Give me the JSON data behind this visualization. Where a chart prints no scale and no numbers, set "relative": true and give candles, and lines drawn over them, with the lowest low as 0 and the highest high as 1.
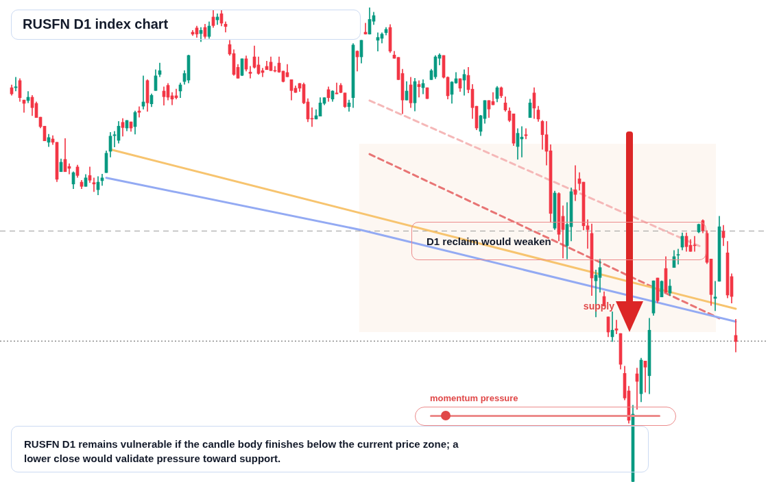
{
  "chart_data": {
    "type": "candlestick",
    "title": "RUSFN D1 index chart",
    "relative": true,
    "categories": [
      null,
      null,
      null,
      null,
      null,
      null,
      null,
      null,
      null,
      null,
      null,
      null,
      null,
      null,
      null,
      null,
      null,
      null,
      null,
      null,
      null,
      null,
      null,
      null,
      null,
      null,
      null,
      null,
      null,
      null,
      null,
      null,
      null,
      null,
      null,
      null,
      null,
      null,
      null,
      null,
      null,
      null,
      null,
      null,
      null,
      null,
      null,
      null,
      null,
      null,
      null,
      null,
      null,
      null,
      null,
      null,
      null,
      null,
      null,
      null,
      null,
      null,
      null,
      null,
      null,
      null,
      null,
      null,
      null,
      null,
      null,
      null,
      null,
      null,
      null,
      null,
      null,
      null,
      null,
      null,
      null,
      null,
      null,
      null,
      null,
      null,
      null,
      null,
      null,
      null,
      null,
      null,
      null,
      null,
      null,
      null,
      null,
      null,
      null,
      null,
      null,
      null,
      null,
      null,
      null,
      null,
      null,
      null,
      null,
      null,
      null,
      null,
      null,
      null,
      null,
      null,
      null,
      null,
      null,
      null,
      null,
      null,
      null,
      null,
      null,
      null,
      null,
      null,
      null,
      null,
      null,
      null,
      null,
      null,
      null,
      null,
      null,
      null,
      null,
      null,
      null,
      null,
      null,
      null,
      null,
      null,
      null,
      null,
      null,
      null,
      null,
      null,
      null,
      null,
      null,
      null,
      null,
      null,
      null,
      null,
      null,
      null,
      null,
      null,
      null,
      null,
      null,
      null,
      null,
      null,
      null,
      null,
      null,
      null,
      null,
      null,
      null
    ],
    "colors": [
      "#f23645",
      "#089981",
      "#f23645",
      "#f23645",
      "#089981",
      "#f23645",
      "#f23645",
      "#f23645",
      "#f23645",
      "#089981",
      "#f23645",
      "#f23645",
      "#089981",
      "#f23645",
      "#f23645",
      "#089981",
      "#f23645",
      "#f23645",
      "#089981",
      "#f23645",
      "#f23645",
      "#089981",
      "#089981",
      "#089981",
      "#089981",
      "#089981",
      "#089981",
      "#f23645",
      "#089981",
      "#f23645",
      "#089981",
      "#f23645",
      "#089981",
      "#f23645",
      "#089981",
      "#089981",
      "#089981",
      "#f23645",
      "#f23645",
      "#f23645",
      "#f23645",
      "#089981",
      "#089981",
      "#089981",
      "#f23645",
      "#f23645",
      "#089981",
      "#f23645",
      "#089981",
      "#f23645",
      "#089981",
      "#f23645",
      "#f23645",
      "#f23645",
      "#f23645",
      "#f23645",
      "#089981",
      "#f23645",
      "#f23645",
      "#f23645",
      "#f23645",
      "#f23645",
      "#f23645",
      "#f23645",
      "#f23645",
      "#f23645",
      "#f23645",
      "#f23645",
      "#f23645",
      "#f23645",
      "#f23645",
      "#f23645",
      "#f23645",
      "#f23645",
      "#089981",
      "#089981",
      "#089981",
      "#f23645",
      "#089981",
      "#f23645",
      "#f23645",
      "#f23645",
      "#089981",
      "#089981",
      "#f23645",
      "#089981",
      "#f23645",
      "#089981",
      "#089981",
      "#089981",
      "#089981",
      "#089981",
      "#f23645",
      "#f23645",
      "#f23645",
      "#f23645",
      "#089981",
      "#f23645",
      "#089981",
      "#f23645",
      "#089981",
      "#f23645",
      "#089981",
      "#089981",
      "#089981",
      "#f23645",
      "#f23645",
      "#089981",
      "#089981",
      "#f23645",
      "#089981",
      "#f23645",
      "#f23645",
      "#f23645",
      "#089981",
      "#089981",
      "#f23645",
      "#f23645",
      "#089981",
      "#f23645",
      "#f23645",
      "#f23645",
      "#f23645",
      "#089981",
      "#089981",
      "#f23645",
      "#089981",
      "#f23645",
      "#f23645",
      "#f23645",
      "#f23645",
      "#f23645",
      "#089981",
      "#f23645",
      "#f23645",
      "#089981",
      "#089981",
      "#f23645",
      "#f23645",
      "#f23645",
      "#f23645",
      "#f23645",
      "#089981",
      "#089981",
      "#f23645",
      "#f23645",
      "#089981",
      "#f23645",
      "#f23645",
      "#f23645",
      "#f23645",
      "#089981",
      "#f23645",
      "#089981",
      "#f23645",
      "#089981",
      "#089981",
      "#f23645",
      "#089981",
      "#f23645",
      "#089981",
      "#089981",
      "#089981",
      "#089981",
      "#f23645",
      "#f23645",
      "#f23645",
      "#089981",
      "#f23645",
      "#f23645",
      "#f23645",
      "#089981",
      "#089981",
      "#f23645",
      "#f23645",
      "#f23645",
      "#f23645"
    ],
    "ohlc": [
      [
        0.831,
        0.837,
        0.815,
        0.818
      ],
      [
        0.831,
        0.853,
        0.824,
        0.833
      ],
      [
        0.846,
        0.85,
        0.802,
        0.81
      ],
      [
        0.805,
        0.805,
        0.779,
        0.798
      ],
      [
        0.804,
        0.823,
        0.799,
        0.811
      ],
      [
        0.811,
        0.815,
        0.772,
        0.789
      ],
      [
        0.798,
        0.801,
        0.768,
        0.768
      ],
      [
        0.769,
        0.769,
        0.746,
        0.749
      ],
      [
        0.75,
        0.75,
        0.719,
        0.719
      ],
      [
        0.716,
        0.733,
        0.707,
        0.726
      ],
      [
        0.723,
        0.73,
        0.711,
        0.716
      ],
      [
        0.716,
        0.716,
        0.633,
        0.638
      ],
      [
        0.654,
        0.681,
        0.654,
        0.674
      ],
      [
        0.68,
        0.724,
        0.654,
        0.654
      ],
      [
        0.665,
        0.671,
        0.649,
        0.661
      ],
      [
        0.628,
        0.654,
        0.618,
        0.652
      ],
      [
        0.664,
        0.668,
        0.642,
        0.646
      ],
      [
        0.632,
        0.636,
        0.618,
        0.623
      ],
      [
        0.623,
        0.648,
        0.623,
        0.641
      ],
      [
        0.646,
        0.664,
        0.631,
        0.636
      ],
      [
        0.631,
        0.641,
        0.612,
        0.628
      ],
      [
        0.616,
        0.644,
        0.605,
        0.632
      ],
      [
        0.635,
        0.649,
        0.625,
        0.641
      ],
      [
        0.652,
        0.698,
        0.652,
        0.693
      ],
      [
        0.697,
        0.737,
        0.685,
        0.729
      ],
      [
        0.73,
        0.739,
        0.706,
        0.732
      ],
      [
        0.72,
        0.76,
        0.714,
        0.75
      ],
      [
        0.758,
        0.766,
        0.729,
        0.747
      ],
      [
        0.746,
        0.762,
        0.74,
        0.762
      ],
      [
        0.759,
        0.759,
        0.739,
        0.746
      ],
      [
        0.749,
        0.782,
        0.733,
        0.779
      ],
      [
        0.782,
        0.791,
        0.769,
        0.779
      ],
      [
        0.792,
        0.856,
        0.786,
        0.801
      ],
      [
        0.846,
        0.848,
        0.781,
        0.799
      ],
      [
        0.797,
        0.818,
        0.791,
        0.815
      ],
      [
        0.825,
        0.869,
        0.825,
        0.856
      ],
      [
        0.859,
        0.883,
        0.854,
        0.867
      ],
      [
        0.824,
        0.833,
        0.794,
        0.812
      ],
      [
        0.836,
        0.84,
        0.805,
        0.811
      ],
      [
        0.814,
        0.821,
        0.795,
        0.807
      ],
      [
        0.814,
        0.828,
        0.807,
        0.81
      ],
      [
        0.824,
        0.841,
        0.81,
        0.837
      ],
      [
        0.844,
        0.867,
        0.838,
        0.861
      ],
      [
        0.847,
        0.9,
        0.841,
        0.899
      ],
      [
        0.948,
        0.952,
        0.941,
        0.944
      ],
      [
        0.957,
        0.961,
        0.937,
        0.944
      ],
      [
        0.945,
        0.958,
        0.928,
        0.952
      ],
      [
        0.958,
        0.965,
        0.935,
        0.939
      ],
      [
        0.939,
        0.97,
        0.935,
        0.961
      ],
      [
        0.98,
        0.994,
        0.958,
        0.962
      ],
      [
        0.974,
        0.987,
        0.964,
        0.98
      ],
      [
        0.987,
        0.994,
        0.961,
        0.967
      ],
      [
        0.965,
        0.97,
        0.948,
        0.96
      ],
      [
        0.922,
        0.931,
        0.899,
        0.902
      ],
      [
        0.903,
        0.911,
        0.857,
        0.859
      ],
      [
        0.874,
        0.88,
        0.851,
        0.851
      ],
      [
        0.857,
        0.892,
        0.856,
        0.892
      ],
      [
        0.892,
        0.898,
        0.866,
        0.87
      ],
      [
        0.864,
        0.876,
        0.851,
        0.861
      ],
      [
        0.896,
        0.919,
        0.872,
        0.874
      ],
      [
        0.879,
        0.896,
        0.859,
        0.861
      ],
      [
        0.867,
        0.872,
        0.854,
        0.863
      ],
      [
        0.876,
        0.887,
        0.869,
        0.869
      ],
      [
        0.885,
        0.896,
        0.867,
        0.867
      ],
      [
        0.867,
        0.876,
        0.864,
        0.866
      ],
      [
        0.883,
        0.896,
        0.863,
        0.864
      ],
      [
        0.866,
        0.866,
        0.843,
        0.844
      ],
      [
        0.863,
        0.88,
        0.854,
        0.854
      ],
      [
        0.848,
        0.848,
        0.805,
        0.825
      ],
      [
        0.83,
        0.835,
        0.821,
        0.821
      ],
      [
        0.84,
        0.84,
        0.823,
        0.83
      ],
      [
        0.838,
        0.841,
        0.797,
        0.799
      ],
      [
        0.801,
        0.808,
        0.759,
        0.765
      ],
      [
        0.766,
        0.789,
        0.749,
        0.765
      ],
      [
        0.765,
        0.785,
        0.765,
        0.772
      ],
      [
        0.771,
        0.81,
        0.771,
        0.799
      ],
      [
        0.798,
        0.81,
        0.795,
        0.81
      ],
      [
        0.827,
        0.833,
        0.802,
        0.81
      ],
      [
        0.807,
        0.825,
        0.802,
        0.824
      ],
      [
        0.82,
        0.841,
        0.818,
        0.818
      ],
      [
        0.836,
        0.84,
        0.82,
        0.821
      ],
      [
        0.82,
        0.82,
        0.789,
        0.791
      ],
      [
        0.791,
        0.805,
        0.781,
        0.799
      ],
      [
        0.81,
        0.924,
        0.789,
        0.921
      ],
      [
        0.908,
        0.909,
        0.866,
        0.896
      ],
      [
        0.896,
        0.931,
        0.883,
        0.931
      ],
      [
        0.948,
        0.967,
        0.944,
        0.944
      ],
      [
        0.944,
        1.0,
        0.944,
        0.975
      ],
      [
        0.971,
        0.99,
        0.964,
        0.983
      ],
      [
        0.931,
        0.947,
        0.908,
        0.937
      ],
      [
        0.935,
        0.947,
        0.925,
        0.944
      ],
      [
        0.947,
        0.958,
        0.942,
        0.954
      ],
      [
        0.958,
        0.964,
        0.905,
        0.908
      ],
      [
        0.9,
        0.908,
        0.893,
        0.893
      ],
      [
        0.895,
        0.895,
        0.848,
        0.848
      ],
      [
        0.861,
        0.87,
        0.776,
        0.805
      ],
      [
        0.805,
        0.844,
        0.805,
        0.824
      ],
      [
        0.837,
        0.853,
        0.789,
        0.799
      ],
      [
        0.799,
        0.851,
        0.782,
        0.844
      ],
      [
        0.838,
        0.846,
        0.811,
        0.833
      ],
      [
        0.831,
        0.848,
        0.818,
        0.84
      ],
      [
        0.831,
        0.831,
        0.808,
        0.808
      ],
      [
        0.848,
        0.87,
        0.848,
        0.867
      ],
      [
        0.854,
        0.899,
        0.85,
        0.896
      ],
      [
        0.893,
        0.903,
        0.879,
        0.9
      ],
      [
        0.899,
        0.899,
        0.851,
        0.853
      ],
      [
        0.853,
        0.854,
        0.807,
        0.814
      ],
      [
        0.817,
        0.844,
        0.798,
        0.843
      ],
      [
        0.841,
        0.863,
        0.84,
        0.85
      ],
      [
        0.85,
        0.85,
        0.823,
        0.83
      ],
      [
        0.847,
        0.869,
        0.815,
        0.859
      ],
      [
        0.857,
        0.874,
        0.82,
        0.827
      ],
      [
        0.828,
        0.838,
        0.766,
        0.789
      ],
      [
        0.792,
        0.792,
        0.742,
        0.746
      ],
      [
        0.739,
        0.773,
        0.73,
        0.772
      ],
      [
        0.766,
        0.804,
        0.756,
        0.804
      ],
      [
        0.804,
        0.804,
        0.768,
        0.786
      ],
      [
        0.802,
        0.821,
        0.795,
        0.795
      ],
      [
        0.808,
        0.834,
        0.801,
        0.831
      ],
      [
        0.831,
        0.833,
        0.81,
        0.814
      ],
      [
        0.799,
        0.812,
        0.781,
        0.784
      ],
      [
        0.782,
        0.789,
        0.759,
        0.762
      ],
      [
        0.776,
        0.776,
        0.709,
        0.714
      ],
      [
        0.707,
        0.745,
        0.68,
        0.735
      ],
      [
        0.723,
        0.749,
        0.685,
        0.727
      ],
      [
        0.732,
        0.745,
        0.723,
        0.73
      ],
      [
        0.768,
        0.807,
        0.768,
        0.799
      ],
      [
        0.82,
        0.831,
        0.766,
        0.788
      ],
      [
        0.784,
        0.792,
        0.76,
        0.765
      ],
      [
        0.76,
        0.762,
        0.701,
        0.732
      ],
      [
        0.732,
        0.76,
        0.668,
        0.697
      ],
      [
        0.698,
        0.711,
        0.547,
        0.566
      ],
      [
        0.535,
        0.613,
        0.532,
        0.609
      ],
      [
        0.608,
        0.61,
        0.508,
        0.522
      ],
      [
        0.56,
        0.582,
        0.472,
        0.532
      ],
      [
        0.498,
        0.589,
        0.47,
        0.543
      ],
      [
        0.538,
        0.62,
        0.508,
        0.612
      ],
      [
        0.616,
        0.667,
        0.593,
        0.606
      ],
      [
        0.639,
        0.652,
        0.615,
        0.629
      ],
      [
        0.632,
        0.632,
        0.531,
        0.54
      ],
      [
        0.54,
        0.553,
        0.492,
        0.532
      ],
      [
        0.524,
        0.544,
        0.393,
        0.43
      ],
      [
        0.424,
        0.447,
        0.348,
        0.436
      ],
      [
        0.431,
        0.47,
        0.4,
        0.452
      ],
      [
        0.391,
        0.401,
        0.371,
        0.371
      ],
      [
        0.348,
        0.348,
        0.306,
        0.316
      ],
      [
        0.306,
        0.359,
        0.296,
        0.32
      ],
      [
        0.323,
        0.341,
        0.312,
        0.32
      ],
      [
        0.313,
        0.313,
        0.238,
        0.248
      ],
      [
        0.229,
        0.244,
        0.173,
        0.177
      ],
      [
        0.192,
        0.202,
        0.124,
        0.13
      ],
      [
        0.001,
        0.162,
        0,
        0.143
      ],
      [
        0.228,
        0.24,
        0.153,
        0.212
      ],
      [
        0.186,
        0.261,
        0.169,
        0.257
      ],
      [
        0.255,
        0.255,
        0.189,
        0.242
      ],
      [
        0.224,
        0.345,
        0.186,
        0.32
      ],
      [
        0.356,
        0.424,
        0.351,
        0.424
      ],
      [
        0.43,
        0.43,
        0.378,
        0.382
      ],
      [
        0.39,
        0.424,
        0.39,
        0.423
      ],
      [
        0.45,
        0.475,
        0.4,
        0.4
      ],
      [
        0.398,
        0.427,
        0.393,
        0.413
      ],
      [
        0.452,
        0.488,
        0.452,
        0.475
      ],
      [
        0.478,
        0.491,
        0.459,
        0.479
      ],
      [
        0.495,
        0.525,
        0.489,
        0.518
      ],
      [
        0.518,
        0.525,
        0.486,
        0.496
      ],
      [
        0.499,
        0.511,
        0.486,
        0.486
      ],
      [
        0.499,
        0.518,
        0.486,
        0.498
      ],
      [
        0.527,
        0.544,
        0.525,
        0.543
      ],
      [
        0.551,
        0.553,
        0.525,
        0.53
      ],
      [
        0.524,
        0.53,
        0.46,
        0.463
      ],
      [
        0.47,
        0.47,
        0.372,
        0.395
      ],
      [
        0.387,
        0.423,
        0.361,
        0.39
      ],
      [
        0.423,
        0.56,
        0.423,
        0.538
      ],
      [
        0.528,
        0.541,
        0.498,
        0.515
      ],
      [
        0.483,
        0.507,
        0.388,
        0.394
      ],
      [
        0.433,
        0.439,
        0.377,
        0.391
      ],
      [
        0.309,
        0.343,
        0.274,
        0.296
      ]
    ],
    "series": [
      {
        "type": "line",
        "color": "#f7c46f",
        "line_style": "solid",
        "values": [
          null,
          null,
          null,
          null,
          null,
          null,
          null,
          null,
          null,
          null,
          null,
          null,
          null,
          null,
          null,
          null,
          null,
          null,
          null,
          null,
          null,
          null,
          null,
          null,
          0.701,
          null,
          null,
          null,
          null,
          null,
          null,
          null,
          null,
          null,
          null,
          null,
          null,
          null,
          null,
          null,
          null,
          null,
          null,
          null,
          null,
          null,
          null,
          null,
          null,
          null,
          null,
          null,
          null,
          null,
          null,
          null,
          null,
          null,
          null,
          null,
          null,
          null,
          null,
          null,
          null,
          null,
          null,
          null,
          null,
          null,
          null,
          null,
          null,
          null,
          null,
          null,
          null,
          null,
          null,
          null,
          null,
          null,
          null,
          null,
          null,
          null,
          null,
          null,
          null,
          null,
          null,
          null,
          null,
          null,
          null,
          null,
          null,
          null,
          null,
          null,
          null,
          null,
          null,
          null,
          null,
          null,
          null,
          null,
          null,
          null,
          null,
          null,
          null,
          null,
          null,
          null,
          null,
          null,
          null,
          null,
          null,
          null,
          null,
          null,
          null,
          null,
          null,
          null,
          null,
          null,
          null,
          null,
          null,
          null,
          null,
          null,
          null,
          null,
          null,
          null,
          null,
          null,
          null,
          null,
          null,
          null,
          null,
          null,
          null,
          null,
          null,
          null,
          null,
          null,
          null,
          null,
          null,
          null,
          null,
          null,
          null,
          null,
          null,
          null,
          null,
          null,
          null,
          null,
          null,
          null,
          null,
          null,
          null,
          null,
          null,
          null,
          0.365
        ]
      },
      {
        "type": "line",
        "color": "#93aaf3",
        "line_style": "solid",
        "values": [
          null,
          null,
          null,
          null,
          null,
          null,
          null,
          null,
          null,
          null,
          null,
          null,
          null,
          null,
          null,
          null,
          null,
          null,
          null,
          null,
          null,
          null,
          null,
          0.641,
          null,
          null,
          null,
          null,
          null,
          null,
          null,
          null,
          null,
          null,
          null,
          null,
          null,
          null,
          null,
          null,
          null,
          null,
          null,
          null,
          null,
          null,
          null,
          null,
          null,
          null,
          null,
          null,
          null,
          null,
          null,
          null,
          null,
          null,
          null,
          null,
          null,
          null,
          null,
          null,
          null,
          null,
          null,
          null,
          null,
          null,
          null,
          null,
          null,
          null,
          null,
          null,
          null,
          null,
          null,
          null,
          null,
          null,
          null,
          null,
          null,
          0.531,
          null,
          null,
          null,
          null,
          null,
          null,
          null,
          null,
          null,
          null,
          null,
          null,
          null,
          null,
          null,
          null,
          null,
          null,
          null,
          null,
          null,
          null,
          null,
          null,
          null,
          null,
          null,
          null,
          null,
          null,
          null,
          null,
          null,
          null,
          null,
          null,
          null,
          null,
          null,
          null,
          null,
          null,
          null,
          null,
          null,
          null,
          null,
          null,
          null,
          null,
          null,
          null,
          null,
          null,
          null,
          null,
          null,
          null,
          null,
          null,
          null,
          null,
          null,
          null,
          null,
          null,
          null,
          null,
          null,
          null,
          null,
          null,
          null,
          null,
          null,
          null,
          null,
          null,
          null,
          null,
          null,
          null,
          null,
          null,
          null,
          null,
          null,
          null,
          null,
          null,
          0.338
        ]
      },
      {
        "type": "line",
        "color": "#e87474",
        "line_style": "dashed",
        "values": [
          null,
          null,
          null,
          null,
          null,
          null,
          null,
          null,
          null,
          null,
          null,
          null,
          null,
          null,
          null,
          null,
          null,
          null,
          null,
          null,
          null,
          null,
          null,
          null,
          null,
          null,
          null,
          null,
          null,
          null,
          null,
          null,
          null,
          null,
          null,
          null,
          null,
          null,
          null,
          null,
          null,
          null,
          null,
          null,
          null,
          null,
          null,
          null,
          null,
          null,
          null,
          null,
          null,
          null,
          null,
          null,
          null,
          null,
          null,
          null,
          null,
          null,
          null,
          null,
          null,
          null,
          null,
          null,
          null,
          null,
          null,
          null,
          null,
          null,
          null,
          null,
          null,
          null,
          null,
          null,
          null,
          null,
          null,
          null,
          null,
          null,
          null,
          0.691,
          null,
          null,
          null,
          null,
          null,
          null,
          null,
          null,
          null,
          null,
          null,
          null,
          null,
          null,
          null,
          null,
          null,
          null,
          null,
          null,
          null,
          null,
          null,
          null,
          null,
          null,
          null,
          null,
          null,
          null,
          null,
          null,
          null,
          null,
          null,
          null,
          null,
          null,
          null,
          null,
          null,
          null,
          null,
          null,
          null,
          null,
          null,
          null,
          null,
          null,
          null,
          null,
          null,
          null,
          null,
          null,
          null,
          null,
          null,
          null,
          null,
          null,
          null,
          null,
          null,
          null,
          null,
          null,
          null,
          null,
          null,
          null,
          null,
          null,
          null,
          null,
          null,
          null,
          null,
          null,
          null,
          null,
          null,
          null,
          0.345,
          null,
          null,
          null,
          null
        ]
      },
      {
        "type": "line",
        "color": "#f5b8b8",
        "line_style": "dashed",
        "values": [
          null,
          null,
          null,
          null,
          null,
          null,
          null,
          null,
          null,
          null,
          null,
          null,
          null,
          null,
          null,
          null,
          null,
          null,
          null,
          null,
          null,
          null,
          null,
          null,
          null,
          null,
          null,
          null,
          null,
          null,
          null,
          null,
          null,
          null,
          null,
          null,
          null,
          null,
          null,
          null,
          null,
          null,
          null,
          null,
          null,
          null,
          null,
          null,
          null,
          null,
          null,
          null,
          null,
          null,
          null,
          null,
          null,
          null,
          null,
          null,
          null,
          null,
          null,
          null,
          null,
          null,
          null,
          null,
          null,
          null,
          null,
          null,
          null,
          null,
          null,
          null,
          null,
          null,
          null,
          null,
          null,
          null,
          null,
          null,
          null,
          null,
          null,
          0.804,
          null,
          null,
          null,
          null,
          null,
          null,
          null,
          null,
          null,
          null,
          null,
          null,
          null,
          null,
          null,
          null,
          null,
          null,
          null,
          null,
          null,
          null,
          null,
          null,
          null,
          null,
          null,
          null,
          null,
          null,
          null,
          null,
          null,
          null,
          null,
          null,
          null,
          null,
          null,
          null,
          null,
          null,
          null,
          null,
          null,
          null,
          null,
          null,
          null,
          null,
          null,
          null,
          null,
          null,
          null,
          null,
          null,
          null,
          null,
          null,
          null,
          null,
          null,
          null,
          null,
          null,
          null,
          null,
          null,
          null,
          null,
          null,
          null,
          null,
          null,
          null,
          null,
          null,
          null,
          null,
          0.494,
          null,
          null,
          null,
          null,
          null,
          null,
          null,
          null
        ]
      }
    ],
    "bands": [
      {
        "axis": "y",
        "from": 0.316,
        "to": 0.713,
        "label": "supply",
        "color": "#fdf7f2"
      }
    ],
    "ref_lines": [
      {
        "axis": "y",
        "value": 0.529,
        "color": "#9a9a9a",
        "line_style": "dashed"
      },
      {
        "axis": "y",
        "value": 0.297,
        "color": "#555555",
        "line_style": "dotted"
      }
    ],
    "annotations": [
      "D1 reclaim would weaken",
      "RUSFN D1 remains vulnerable if the candle body finishes below the current price zone; a lower close would validate pressure toward support.",
      "momentum pressure"
    ]
  }
}
